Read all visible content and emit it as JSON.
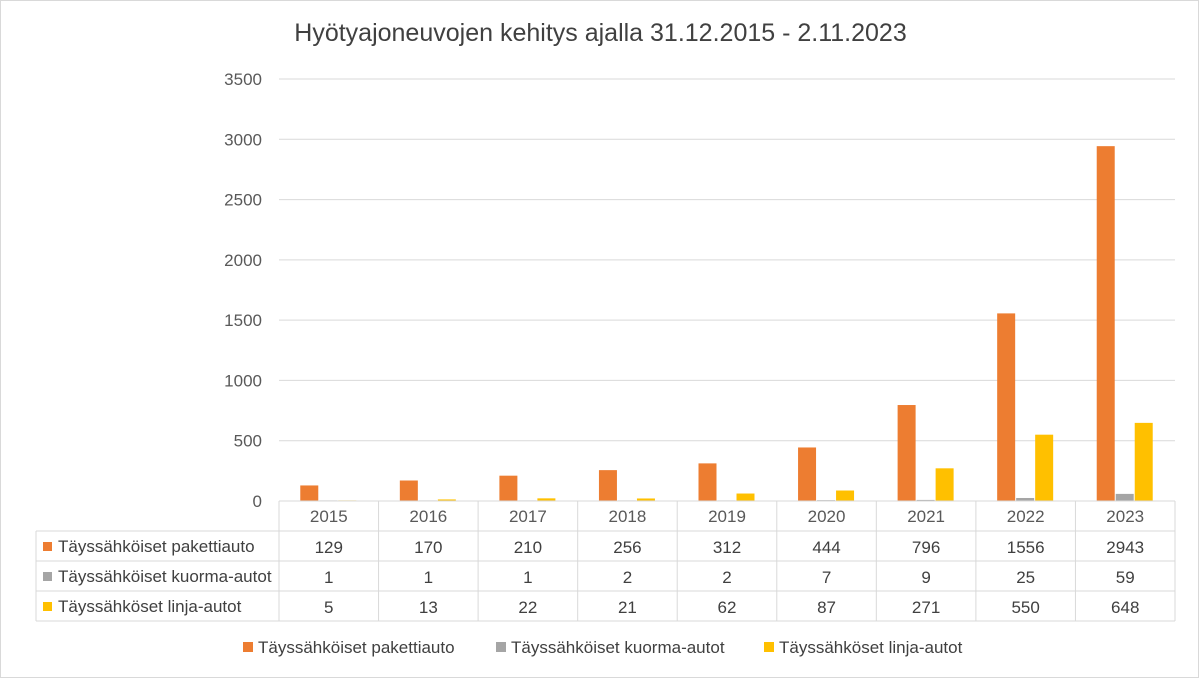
{
  "chart_data": {
    "type": "bar",
    "title": "Hyötyajoneuvojen kehitys ajalla 31.12.2015 - 2.11.2023",
    "categories": [
      "2015",
      "2016",
      "2017",
      "2018",
      "2019",
      "2020",
      "2021",
      "2022",
      "2023"
    ],
    "series": [
      {
        "name": "Täyssähköiset pakettiauto",
        "color": "#ed7d31",
        "values": [
          129,
          170,
          210,
          256,
          312,
          444,
          796,
          1556,
          2943
        ]
      },
      {
        "name": "Täyssähköiset kuorma-autot",
        "color": "#a5a5a5",
        "values": [
          1,
          1,
          1,
          2,
          2,
          7,
          9,
          25,
          59
        ]
      },
      {
        "name": "Täyssähköset linja-autot",
        "color": "#ffc000",
        "values": [
          5,
          13,
          22,
          21,
          62,
          87,
          271,
          550,
          648
        ]
      }
    ],
    "ylim": [
      0,
      3500
    ],
    "yticks": [
      "0",
      "500",
      "1000",
      "1500",
      "2000",
      "2500",
      "3000",
      "3500"
    ],
    "grid": true,
    "legend_position": "bottom",
    "data_table": true
  }
}
